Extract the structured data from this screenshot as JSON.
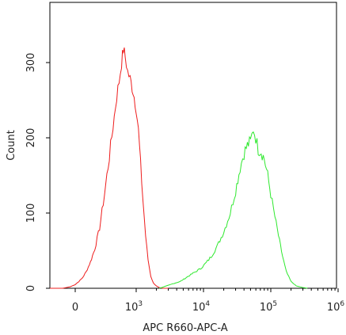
{
  "chart_data": {
    "type": "line",
    "title": "",
    "xlabel": "APC R660-APC-A",
    "ylabel": "Count",
    "x_scale": "biexponential",
    "xlim": [
      -300,
      1000000
    ],
    "ylim": [
      0,
      380
    ],
    "grid": false,
    "x_ticks": [
      {
        "value": 0,
        "base": "0",
        "exp": ""
      },
      {
        "value": 1000,
        "base": "10",
        "exp": "3"
      },
      {
        "value": 10000,
        "base": "10",
        "exp": "4"
      },
      {
        "value": 100000,
        "base": "10",
        "exp": "5"
      },
      {
        "value": 1000000,
        "base": "10",
        "exp": "6"
      }
    ],
    "y_ticks": [
      0,
      100,
      200,
      300
    ],
    "series": [
      {
        "color": "#ee1c1c",
        "points": [
          [
            -300,
            0
          ],
          [
            -150,
            0
          ],
          [
            -60,
            2
          ],
          [
            0,
            5
          ],
          [
            60,
            9
          ],
          [
            120,
            14
          ],
          [
            180,
            22
          ],
          [
            250,
            35
          ],
          [
            320,
            52
          ],
          [
            400,
            80
          ],
          [
            480,
            125
          ],
          [
            560,
            175
          ],
          [
            620,
            215
          ],
          [
            680,
            255
          ],
          [
            720,
            275
          ],
          [
            760,
            300
          ],
          [
            790,
            318
          ],
          [
            820,
            308
          ],
          [
            860,
            288
          ],
          [
            900,
            278
          ],
          [
            950,
            262
          ],
          [
            1000,
            240
          ],
          [
            1080,
            210
          ],
          [
            1160,
            165
          ],
          [
            1260,
            118
          ],
          [
            1380,
            70
          ],
          [
            1500,
            38
          ],
          [
            1650,
            16
          ],
          [
            1800,
            7
          ],
          [
            2000,
            3
          ],
          [
            2200,
            1
          ],
          [
            2500,
            0
          ],
          [
            3000,
            0
          ]
        ]
      },
      {
        "color": "#2ee82e",
        "points": [
          [
            2200,
            0
          ],
          [
            2800,
            3
          ],
          [
            3500,
            6
          ],
          [
            4500,
            9
          ],
          [
            5500,
            14
          ],
          [
            7000,
            20
          ],
          [
            9000,
            26
          ],
          [
            11000,
            34
          ],
          [
            13000,
            42
          ],
          [
            16000,
            56
          ],
          [
            20000,
            75
          ],
          [
            25000,
            100
          ],
          [
            30000,
            130
          ],
          [
            35000,
            160
          ],
          [
            40000,
            180
          ],
          [
            45000,
            190
          ],
          [
            50000,
            195
          ],
          [
            55000,
            212
          ],
          [
            60000,
            200
          ],
          [
            65000,
            185
          ],
          [
            72000,
            182
          ],
          [
            80000,
            172
          ],
          [
            90000,
            150
          ],
          [
            100000,
            125
          ],
          [
            115000,
            95
          ],
          [
            130000,
            70
          ],
          [
            150000,
            42
          ],
          [
            170000,
            22
          ],
          [
            200000,
            9
          ],
          [
            240000,
            3
          ],
          [
            300000,
            1
          ],
          [
            350000,
            0
          ]
        ]
      }
    ]
  }
}
